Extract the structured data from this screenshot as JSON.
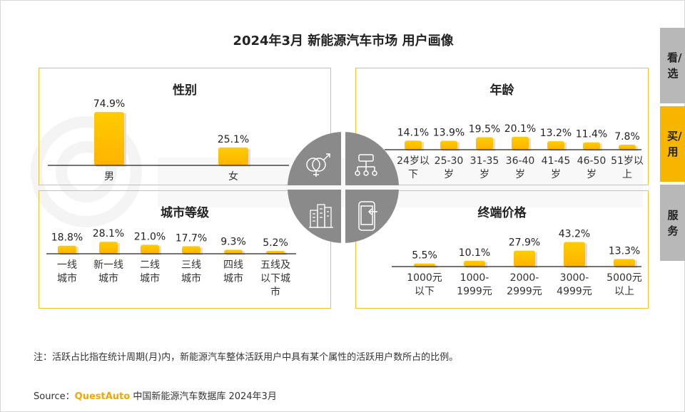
{
  "title": "2024年3月 新能源汽车市场 用户画像",
  "watermark": "QUESTMOBILE",
  "tabs": [
    {
      "label": "看/选",
      "active": false
    },
    {
      "label": "买/用",
      "active": true
    },
    {
      "label": "服务",
      "active": false
    }
  ],
  "colors": {
    "bar": "#ffc107",
    "accent": "#f2c230",
    "tab_active": "#f7b500",
    "tab_inactive": "#b8b8b8",
    "icon_bg": "#8a8a8a"
  },
  "center_icons": [
    "gender-icon",
    "hierarchy-icon",
    "city-buildings-icon",
    "phone-icon"
  ],
  "note": "注：活跃占比指在统计周期(月)内，新能源汽车整体活跃用户中具有某个属性的活跃用户数所占的比例。",
  "source": {
    "prefix": "Source：",
    "brand": "QuestAuto",
    "text": " 中国新能源汽车数据库 2024年3月"
  },
  "chart_data": [
    {
      "type": "bar",
      "title": "性别",
      "categories": [
        "男",
        "女"
      ],
      "values": [
        74.9,
        25.1
      ],
      "labels": [
        "74.9%",
        "25.1%"
      ]
    },
    {
      "type": "bar",
      "title": "年龄",
      "categories": [
        "24岁以下",
        "25-30岁",
        "31-35岁",
        "36-40岁",
        "41-45岁",
        "46-50岁",
        "51岁以上"
      ],
      "values": [
        14.1,
        13.9,
        19.5,
        20.1,
        13.2,
        11.4,
        7.8
      ],
      "labels": [
        "14.1%",
        "13.9%",
        "19.5%",
        "20.1%",
        "13.2%",
        "11.4%",
        "7.8%"
      ]
    },
    {
      "type": "bar",
      "title": "城市等级",
      "categories": [
        "一线城市",
        "新一线城市",
        "二线城市",
        "三线城市",
        "四线城市",
        "五线及以下城市"
      ],
      "values": [
        18.8,
        28.1,
        21.0,
        17.7,
        9.3,
        5.2
      ],
      "labels": [
        "18.8%",
        "28.1%",
        "21.0%",
        "17.7%",
        "9.3%",
        "5.2%"
      ]
    },
    {
      "type": "bar",
      "title": "终端价格",
      "categories": [
        "1000元以下",
        "1000-1999元",
        "2000-2999元",
        "3000-4999元",
        "5000元以上"
      ],
      "values": [
        5.5,
        10.1,
        27.9,
        43.2,
        13.3
      ],
      "labels": [
        "5.5%",
        "10.1%",
        "27.9%",
        "43.2%",
        "13.3%"
      ]
    }
  ]
}
